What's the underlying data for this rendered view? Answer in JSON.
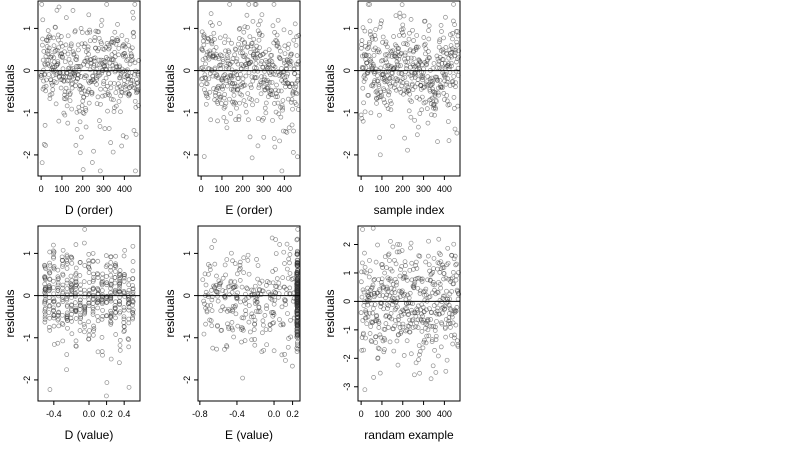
{
  "chart_data": [
    {
      "type": "scatter",
      "xlabel": "D (order)",
      "ylabel": "residuals",
      "xlim": [
        -15,
        475
      ],
      "ylim": [
        -2.5,
        1.65
      ],
      "xticks": [
        0,
        100,
        200,
        300,
        400
      ],
      "yticks": [
        -2,
        -1,
        0,
        1
      ],
      "hline": 0,
      "point_count": 470,
      "residual_pattern": "order"
    },
    {
      "type": "scatter",
      "xlabel": "E (order)",
      "ylabel": "residuals",
      "xlim": [
        -15,
        475
      ],
      "ylim": [
        -2.5,
        1.65
      ],
      "xticks": [
        0,
        100,
        200,
        300,
        400
      ],
      "yticks": [
        -2,
        -1,
        0,
        1
      ],
      "hline": 0,
      "point_count": 470,
      "residual_pattern": "order"
    },
    {
      "type": "scatter",
      "xlabel": "sample index",
      "ylabel": "residuals",
      "xlim": [
        -15,
        475
      ],
      "ylim": [
        -2.5,
        1.65
      ],
      "xticks": [
        0,
        100,
        200,
        300,
        400
      ],
      "yticks": [
        -2,
        -1,
        0,
        1
      ],
      "hline": 0,
      "point_count": 470,
      "residual_pattern": "order"
    },
    {
      "type": "scatter",
      "xlabel": "D (value)",
      "ylabel": "residuals",
      "xlim": [
        -0.58,
        0.58
      ],
      "ylim": [
        -2.5,
        1.65
      ],
      "xticks": [
        -0.4,
        0.0,
        0.2,
        0.4
      ],
      "xtick_labels": [
        "-0.4",
        "0.0",
        "0.2",
        "0.4"
      ],
      "yticks": [
        -2,
        -1,
        0,
        1
      ],
      "hline": 0,
      "point_count": 470,
      "x_levels": [
        -0.5,
        -0.45,
        -0.4,
        -0.35,
        -0.3,
        -0.25,
        -0.2,
        -0.15,
        -0.1,
        -0.05,
        0.0,
        0.05,
        0.1,
        0.15,
        0.2,
        0.25,
        0.3,
        0.35,
        0.4,
        0.45,
        0.5
      ],
      "residual_pattern": "columns"
    },
    {
      "type": "scatter",
      "xlabel": "E (value)",
      "ylabel": "residuals",
      "xlim": [
        -0.82,
        0.28
      ],
      "ylim": [
        -2.5,
        1.65
      ],
      "xticks": [
        -0.8,
        -0.4,
        0.0,
        0.2
      ],
      "xtick_labels": [
        "-0.8",
        "-0.4",
        "0.0",
        "0.2"
      ],
      "yticks": [
        -2,
        -1,
        0,
        1
      ],
      "hline": 0,
      "point_count": 470,
      "dense_column_x": 0.25,
      "residual_pattern": "dense-right"
    },
    {
      "type": "scatter",
      "xlabel": "randam example",
      "ylabel": "residuals",
      "xlim": [
        -15,
        475
      ],
      "ylim": [
        -3.5,
        2.65
      ],
      "xticks": [
        0,
        100,
        200,
        300,
        400
      ],
      "yticks": [
        -3,
        -2,
        -1,
        0,
        1,
        2
      ],
      "hline": 0,
      "point_count": 470,
      "residual_pattern": "random"
    }
  ]
}
